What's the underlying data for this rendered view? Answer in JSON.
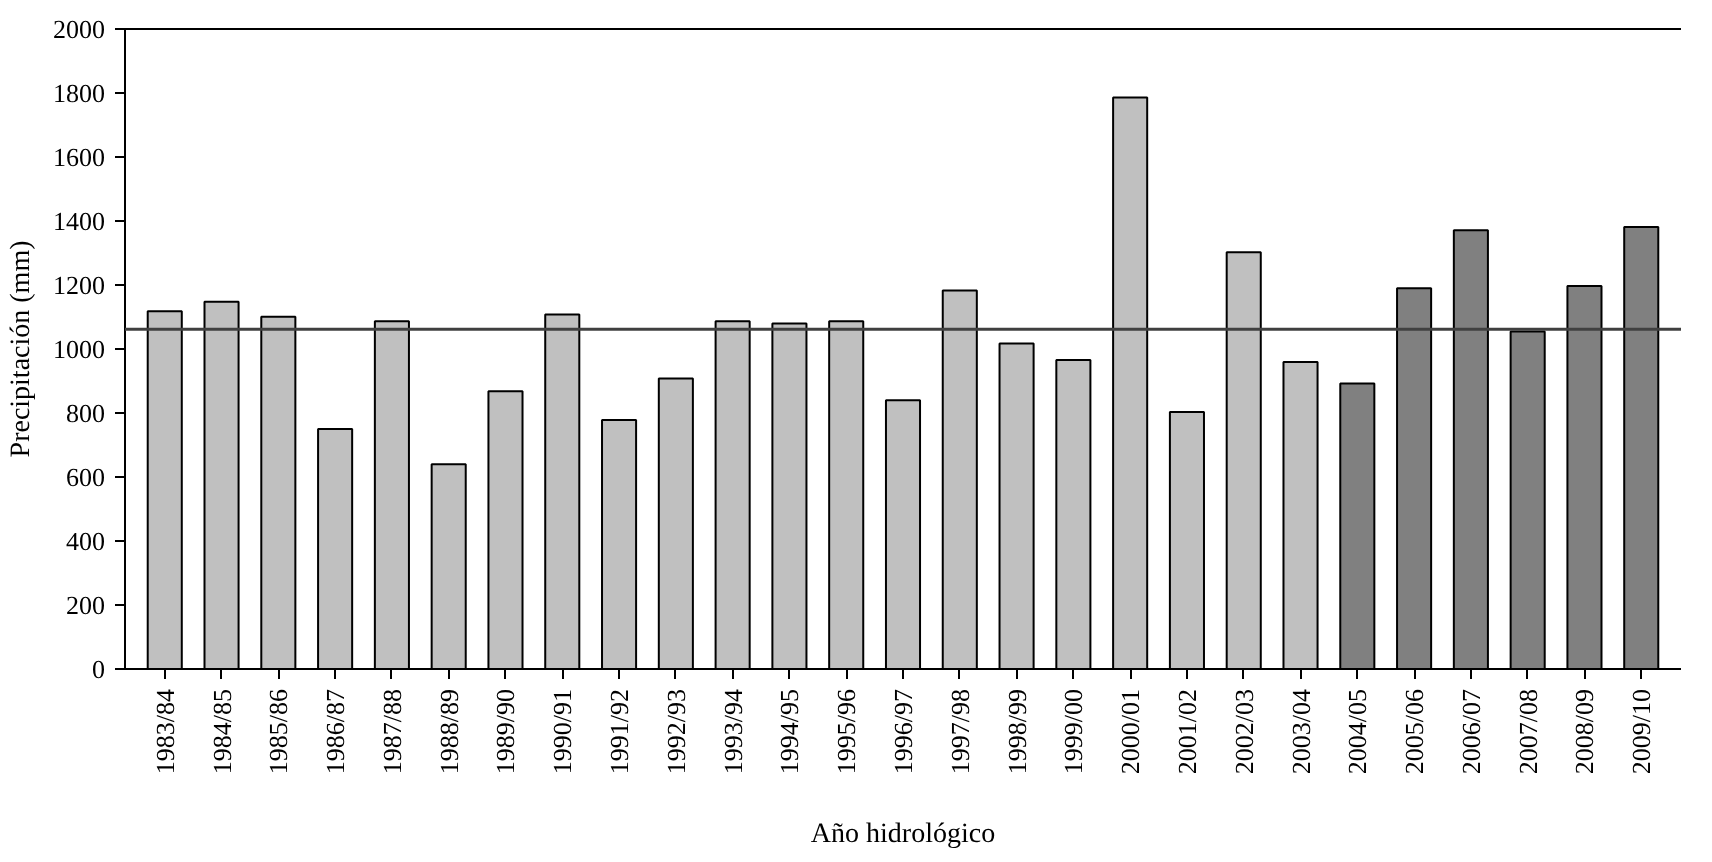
{
  "chart_data": {
    "type": "bar",
    "xlabel": "Año hidrológico",
    "ylabel": "Precipitación (mm)",
    "categories": [
      "1983/84",
      "1984/85",
      "1985/86",
      "1986/87",
      "1987/88",
      "1988/89",
      "1989/90",
      "1990/91",
      "1991/92",
      "1992/93",
      "1993/94",
      "1994/95",
      "1995/96",
      "1996/97",
      "1997/98",
      "1998/99",
      "1999/00",
      "2000/01",
      "2001/02",
      "2002/03",
      "2003/04",
      "2004/05",
      "2005/06",
      "2006/07",
      "2007/08",
      "2008/09",
      "2009/10"
    ],
    "values": [
      1118,
      1148,
      1101,
      750,
      1087,
      640,
      868,
      1108,
      778,
      908,
      1087,
      1080,
      1087,
      840,
      1183,
      1017,
      966,
      1786,
      803,
      1302,
      959,
      892,
      1190,
      1371,
      1055,
      1197,
      1381
    ],
    "colors": [
      "#c0c0c0",
      "#c0c0c0",
      "#c0c0c0",
      "#c0c0c0",
      "#c0c0c0",
      "#c0c0c0",
      "#c0c0c0",
      "#c0c0c0",
      "#c0c0c0",
      "#c0c0c0",
      "#c0c0c0",
      "#c0c0c0",
      "#c0c0c0",
      "#c0c0c0",
      "#c0c0c0",
      "#c0c0c0",
      "#c0c0c0",
      "#c0c0c0",
      "#c0c0c0",
      "#c0c0c0",
      "#c0c0c0",
      "#808080",
      "#808080",
      "#808080",
      "#808080",
      "#808080",
      "#808080"
    ],
    "ylim": [
      0,
      2000
    ],
    "yticks": [
      0,
      200,
      400,
      600,
      800,
      1000,
      1200,
      1400,
      1600,
      1800,
      2000
    ],
    "ref_lines": [
      {
        "axis": "y",
        "value": 1062,
        "color": "#404040"
      }
    ],
    "grid": false
  }
}
